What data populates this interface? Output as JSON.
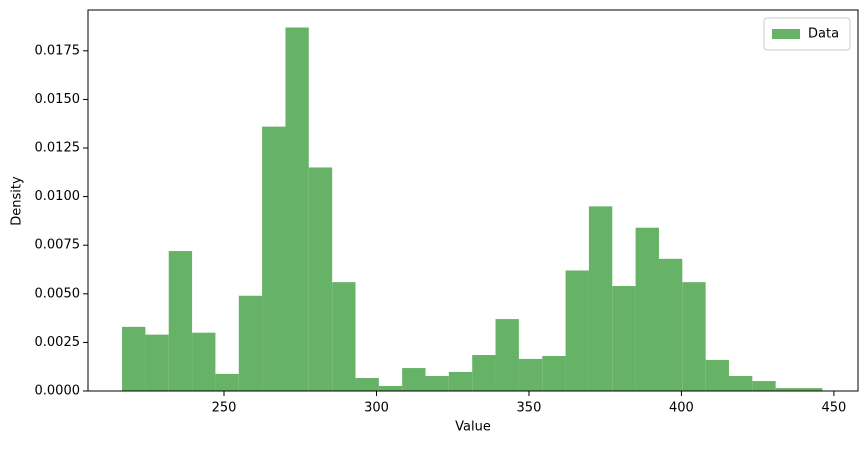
{
  "chart_data": {
    "type": "histogram",
    "xlabel": "Value",
    "ylabel": "Density",
    "bins": [
      216.56,
      224.22,
      231.87,
      239.53,
      247.18,
      254.84,
      262.49,
      270.15,
      277.8,
      285.46,
      293.11,
      300.77,
      308.42,
      316.08,
      323.73,
      331.39,
      339.04,
      346.7,
      354.35,
      362.01,
      369.66,
      377.32,
      384.97,
      392.63,
      400.28,
      407.94,
      415.59,
      423.25,
      430.9,
      438.56,
      446.21
    ],
    "series": [
      {
        "name": "Data",
        "color": "#66b266",
        "values": [
          0.0033,
          0.0029,
          0.0072,
          0.003,
          0.00088,
          0.0049,
          0.0136,
          0.0187,
          0.0115,
          0.0056,
          0.00067,
          0.00026,
          0.00118,
          0.00077,
          0.00098,
          0.00185,
          0.0037,
          0.00165,
          0.0018,
          0.0062,
          0.0095,
          0.0054,
          0.0084,
          0.0068,
          0.0056,
          0.0016,
          0.00077,
          0.00051,
          0.00015,
          0.00015
        ]
      }
    ],
    "xlim": [
      205.4,
      457.9
    ],
    "xticks": [
      250,
      300,
      350,
      400,
      450
    ],
    "ylim": [
      0,
      0.0196
    ],
    "yticks": [
      {
        "value": 0,
        "label": "0.0000"
      },
      {
        "value": 0.0025,
        "label": "0.0025"
      },
      {
        "value": 0.005,
        "label": "0.0050"
      },
      {
        "value": 0.0075,
        "label": "0.0075"
      },
      {
        "value": 0.01,
        "label": "0.0100"
      },
      {
        "value": 0.0125,
        "label": "0.0125"
      },
      {
        "value": 0.015,
        "label": "0.0150"
      },
      {
        "value": 0.0175,
        "label": "0.0175"
      }
    ],
    "legend": "upper right"
  }
}
